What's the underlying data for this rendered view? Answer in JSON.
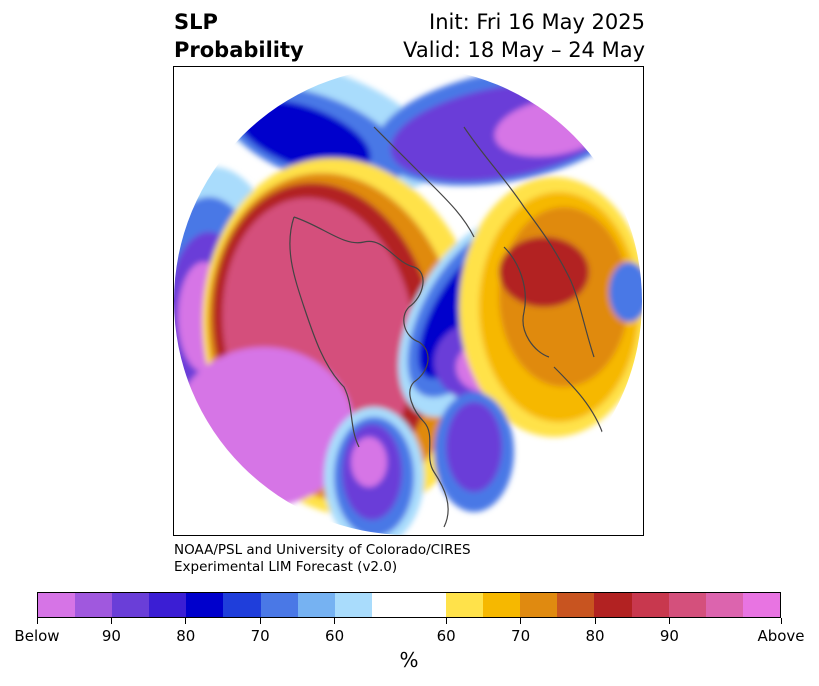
{
  "header": {
    "title_line1": "SLP",
    "title_line2": "Probability",
    "init": "Init: Fri 16 May 2025",
    "valid": "Valid: 18 May – 24 May"
  },
  "credit": {
    "line1": "NOAA/PSL and University of Colorado/CIRES",
    "line2": "Experimental LIM Forecast (v2.0)"
  },
  "colorbar": {
    "colors": [
      "#d674e6",
      "#a058de",
      "#6a3ed8",
      "#3b1ed4",
      "#0000cc",
      "#1f3edb",
      "#4a78e6",
      "#76b2f2",
      "#a9dcfc",
      "#ffffff",
      "#ffffff",
      "#ffe24a",
      "#f6b800",
      "#e08a10",
      "#c85420",
      "#b22222",
      "#c8384e",
      "#d4507c",
      "#dc64ae",
      "#e874e2"
    ],
    "tick_labels": [
      "Below",
      "90",
      "80",
      "70",
      "60",
      "60",
      "70",
      "80",
      "90",
      "Above"
    ],
    "unit": "%"
  },
  "map": {
    "projection": "north-polar-stereographic",
    "colors": {
      "below_strong": "#d674e6",
      "below_mid": "#6a3ed8",
      "below_deep": "#0000cc",
      "below_light": "#4a78e6",
      "below_pale": "#a9dcfc",
      "above_pale": "#ffe24a",
      "above_mid": "#f6b800",
      "above_orange": "#e08a10",
      "above_red": "#b22222",
      "above_strong": "#d4507c",
      "coast": "#444444"
    }
  }
}
